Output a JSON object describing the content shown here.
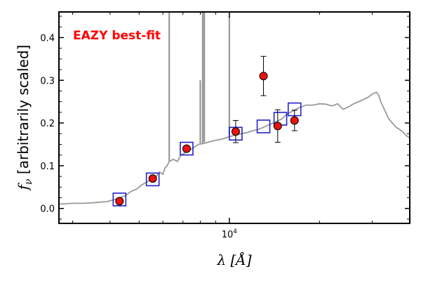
{
  "chart_data": {
    "type": "scatter",
    "title": "",
    "annotation": "EAZY best-fit",
    "annotation_color": "#ff0000",
    "xlabel": "λ [Å]",
    "ylabel_symbol": "f",
    "ylabel_subscript": "ν",
    "ylabel_text": " [arbitrarily scaled]",
    "xscale": "log",
    "xlim": [
      2700,
      40000
    ],
    "ylim": [
      -0.035,
      0.46
    ],
    "x_tick_labels": [
      {
        "value": 10000,
        "mantissa": "10",
        "exponent": "4"
      }
    ],
    "y_ticks": [
      0.0,
      0.1,
      0.2,
      0.3,
      0.4
    ],
    "y_tick_labels": [
      "0.0",
      "0.1",
      "0.2",
      "0.3",
      "0.4"
    ],
    "grid": false,
    "template_color": "#999999",
    "observed_color": "#e8120c",
    "model_color": "#2222cc",
    "series": [
      {
        "kind": "line",
        "x": [
          2700,
          3000,
          3300,
          3600,
          3900,
          4100,
          4300,
          4500,
          4700,
          4900,
          5000,
          5100,
          5250,
          5400,
          5550,
          5700,
          5850,
          6000,
          6100,
          6200,
          6300,
          6500,
          6700,
          6900,
          7100,
          7300,
          7500,
          7700,
          7900,
          8200,
          8500,
          8800,
          9100,
          9400,
          9700,
          10000,
          10500,
          11000,
          11500,
          12000,
          12500,
          13000,
          13500,
          14000,
          14500,
          15000,
          15500,
          16000,
          17000,
          18000,
          19000,
          20000,
          21000,
          22000,
          23000,
          23500,
          24000,
          25000,
          26000,
          27000,
          28000,
          29000,
          30000,
          31000,
          31500,
          32000,
          33000,
          34000,
          35000,
          36000,
          37000,
          38000,
          39000,
          40000
        ],
        "y": [
          0.01,
          0.012,
          0.012,
          0.014,
          0.016,
          0.02,
          0.025,
          0.03,
          0.04,
          0.045,
          0.05,
          0.055,
          0.06,
          0.065,
          0.07,
          0.075,
          0.085,
          0.08,
          0.095,
          0.1,
          0.11,
          0.115,
          0.11,
          0.125,
          0.13,
          0.135,
          0.14,
          0.145,
          0.15,
          0.152,
          0.155,
          0.158,
          0.16,
          0.162,
          0.165,
          0.168,
          0.172,
          0.175,
          0.178,
          0.182,
          0.185,
          0.19,
          0.195,
          0.2,
          0.205,
          0.21,
          0.22,
          0.225,
          0.235,
          0.242,
          0.242,
          0.245,
          0.244,
          0.24,
          0.245,
          0.238,
          0.232,
          0.238,
          0.245,
          0.25,
          0.255,
          0.26,
          0.268,
          0.272,
          0.265,
          0.25,
          0.23,
          0.21,
          0.2,
          0.19,
          0.185,
          0.178,
          0.17,
          0.165
        ]
      },
      {
        "kind": "emission_lines",
        "lines": [
          {
            "x": 6300,
            "top": 0.46
          },
          {
            "x": 8000,
            "top": 0.3
          },
          {
            "x": 8150,
            "top": 0.46
          },
          {
            "x": 8250,
            "top": 0.46
          },
          {
            "x": 10000,
            "top": 0.45
          }
        ]
      },
      {
        "kind": "model_photometry",
        "marker": "open-square",
        "x": [
          4300,
          5550,
          7200,
          10500,
          13000,
          14800,
          16500
        ],
        "y": [
          0.021,
          0.068,
          0.14,
          0.175,
          0.192,
          0.21,
          0.232
        ]
      },
      {
        "kind": "observed_photometry",
        "marker": "filled-circle",
        "x": [
          4300,
          5550,
          7200,
          10500,
          13000,
          14500,
          16500
        ],
        "y": [
          0.017,
          0.07,
          0.14,
          0.18,
          0.31,
          0.193,
          0.206
        ],
        "yerr": [
          0.0,
          0.005,
          0.006,
          0.026,
          0.046,
          0.038,
          0.024
        ]
      }
    ]
  }
}
